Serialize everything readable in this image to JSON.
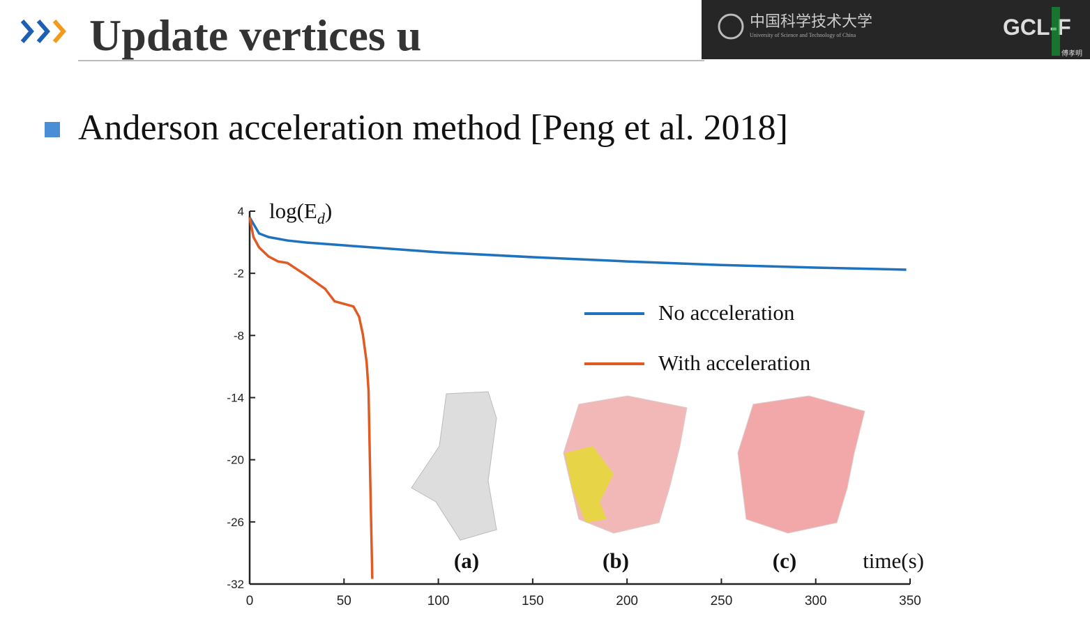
{
  "header": {
    "title": "Update vertices u",
    "logo_cn": "中国科学技术大学",
    "logo_en": "University of Science and Technology of China",
    "brand": "GCL-F",
    "presenter": "傅孝明"
  },
  "bullet": "Anderson acceleration method [Peng et al. 2018]",
  "chart_data": {
    "type": "line",
    "ylabel": {
      "main": "log(E",
      "sub": "d",
      "close": ")"
    },
    "xlabel": "time(s)",
    "annotations": [
      "(a)",
      "(b)",
      "(c)"
    ],
    "xlim": [
      0,
      350
    ],
    "xticks": [
      0,
      50,
      100,
      150,
      200,
      250,
      300,
      350
    ],
    "ylim": [
      -32,
      4
    ],
    "yticks": [
      4,
      -2,
      -8,
      -14,
      -20,
      -26,
      -32
    ],
    "series": [
      {
        "name": "No acceleration",
        "color": "#1f72bd",
        "x": [
          0,
          5,
          10,
          20,
          30,
          50,
          100,
          150,
          200,
          250,
          300,
          348
        ],
        "values": [
          3.4,
          1.85,
          1.5,
          1.17,
          0.97,
          0.7,
          0.03,
          -0.44,
          -0.85,
          -1.2,
          -1.45,
          -1.65
        ]
      },
      {
        "name": "With acceleration",
        "color": "#e05a22",
        "x": [
          0,
          2,
          5,
          10,
          15,
          20,
          30,
          40,
          45,
          55,
          58,
          60,
          62,
          63,
          64,
          65
        ],
        "values": [
          3.4,
          1.5,
          0.5,
          -0.37,
          -0.85,
          -1,
          -2.2,
          -3.5,
          -4.7,
          -5.2,
          -6.2,
          -7.9,
          -10.6,
          -13.3,
          -22.7,
          -31.5
        ]
      }
    ]
  }
}
